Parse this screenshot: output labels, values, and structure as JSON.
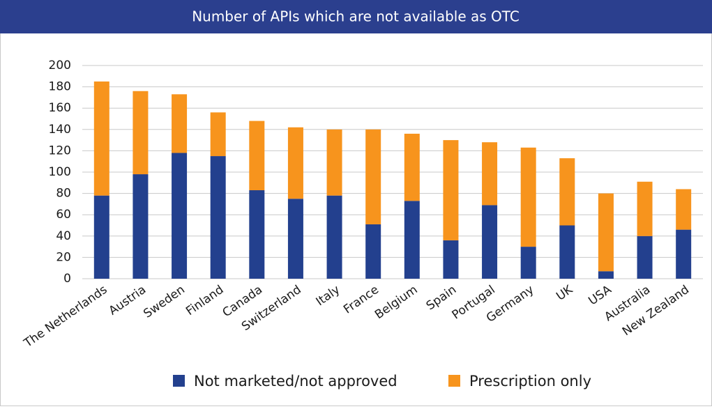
{
  "chart_data": {
    "type": "stacked_bar",
    "title": "Number of APIs which are not available as OTC",
    "categories": [
      "The Netherlands",
      "Austria",
      "Sweden",
      "Finland",
      "Canada",
      "Switzerland",
      "Italy",
      "France",
      "Belgium",
      "Spain",
      "Portugal",
      "Germany",
      "UK",
      "USA",
      "Australia",
      "New Zealand"
    ],
    "series": [
      {
        "name": "Not marketed/not approved",
        "color": "#23408e",
        "values": [
          78,
          98,
          118,
          115,
          83,
          75,
          78,
          51,
          73,
          36,
          69,
          30,
          50,
          7,
          40,
          46
        ]
      },
      {
        "name": "Prescription only",
        "color": "#f7941d",
        "values": [
          107,
          78,
          55,
          41,
          65,
          67,
          62,
          89,
          63,
          94,
          59,
          93,
          63,
          73,
          51,
          38
        ]
      }
    ],
    "ylim": [
      0,
      200
    ],
    "yticks": [
      0,
      20,
      40,
      60,
      80,
      100,
      120,
      140,
      160,
      180,
      200
    ],
    "grid": true
  }
}
